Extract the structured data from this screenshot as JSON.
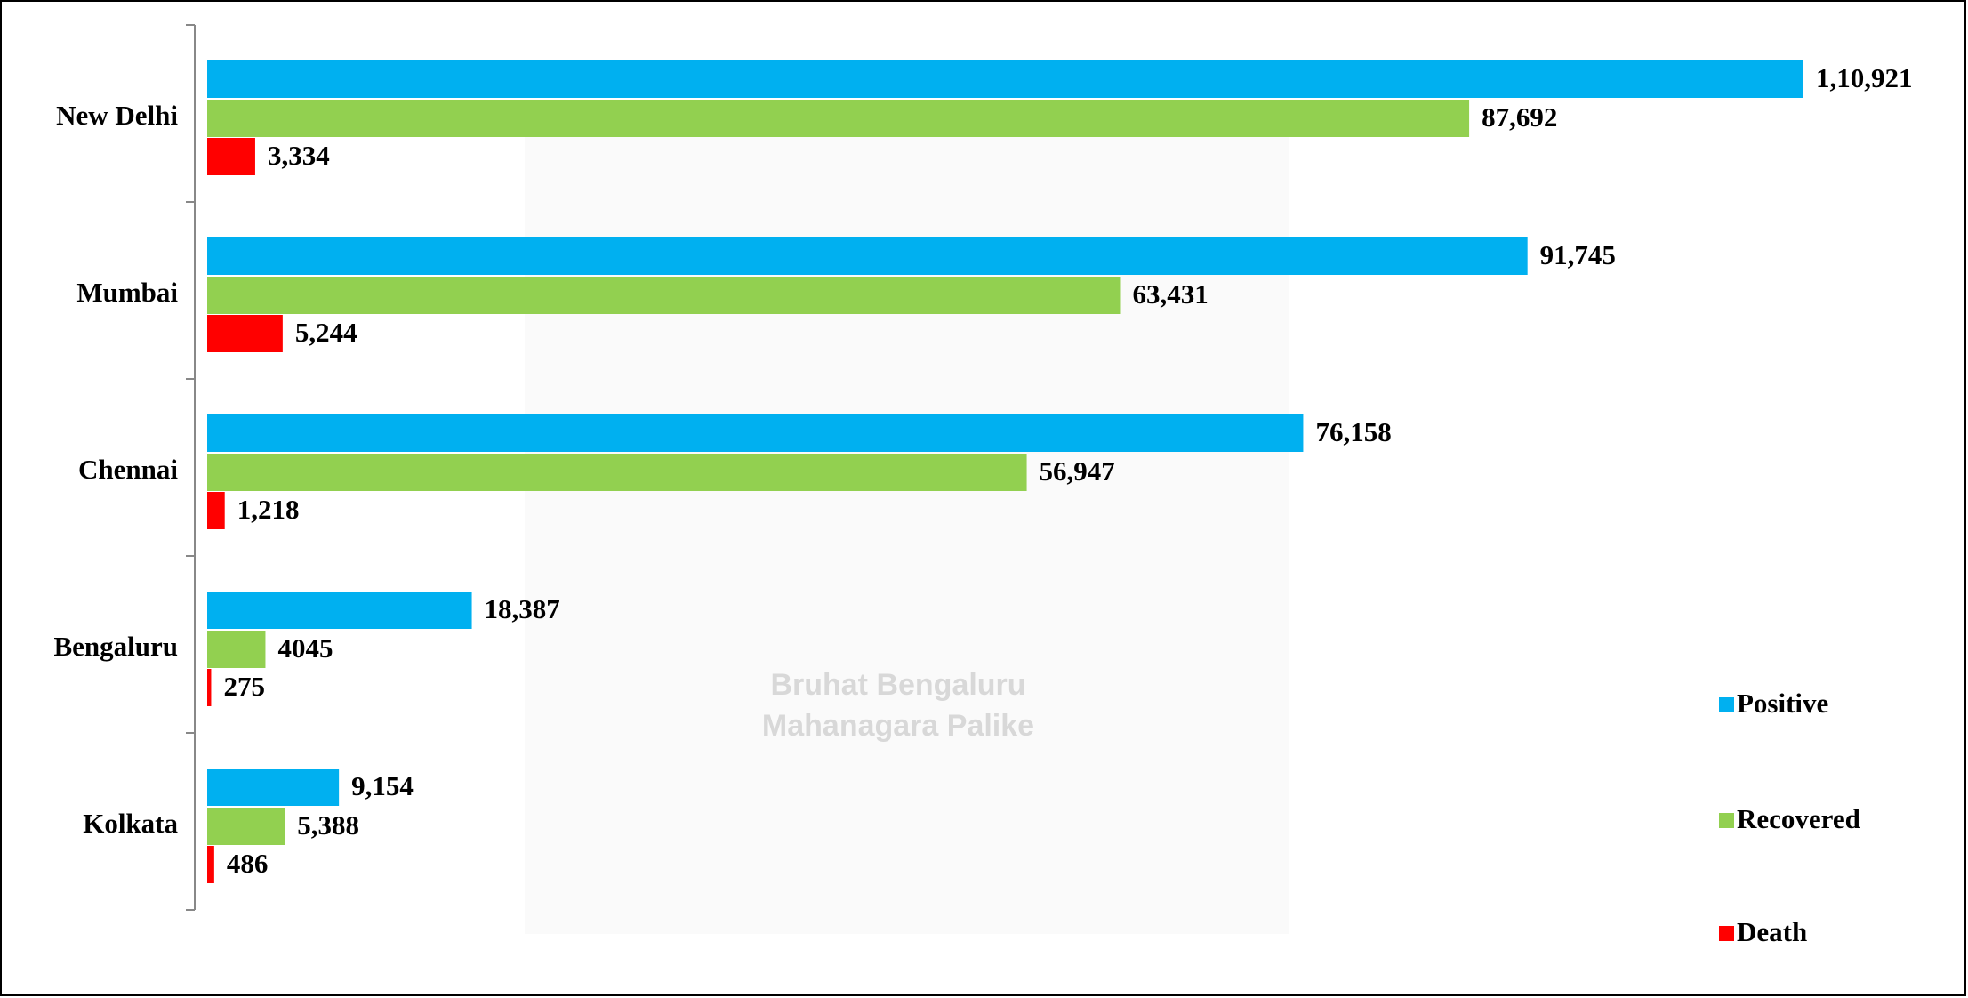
{
  "chart_data": {
    "type": "hbar",
    "categories": [
      "New Delhi",
      "Mumbai",
      "Chennai",
      "Bengaluru",
      "Kolkata"
    ],
    "series": [
      {
        "name": "Positive",
        "color": "#00b0f0",
        "values": [
          110921,
          91745,
          76158,
          18387,
          9154
        ],
        "value_labels": [
          "1,10,921",
          "91,745",
          "76,158",
          "18,387",
          "9,154"
        ]
      },
      {
        "name": "Recovered",
        "color": "#92d050",
        "values": [
          87692,
          63431,
          56947,
          4045,
          5388
        ],
        "value_labels": [
          "87,692",
          "63,431",
          "56,947",
          "4045",
          "5,388"
        ]
      },
      {
        "name": "Death",
        "color": "#ff0000",
        "values": [
          3334,
          5244,
          1218,
          275,
          486
        ],
        "value_labels": [
          "3,334",
          "5,244",
          "1,218",
          "275",
          "486"
        ]
      }
    ],
    "legend": "right",
    "watermark": [
      "Bruhat Bengaluru",
      "Mahanagara Palike"
    ]
  }
}
